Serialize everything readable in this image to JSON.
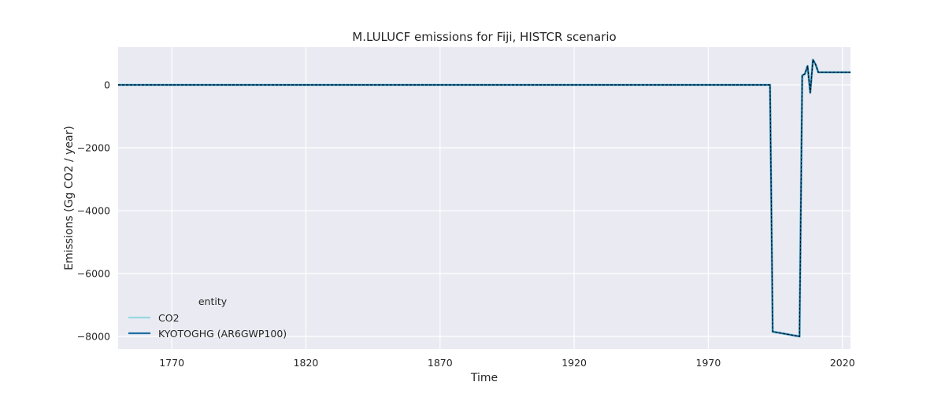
{
  "chart_data": {
    "type": "line",
    "title": "M.LULUCF emissions for Fiji, HISTCR scenario",
    "xlabel": "Time",
    "ylabel": "Emissions (Gg CO2 / year)",
    "xlim": [
      1750,
      2023
    ],
    "ylim": [
      -8400,
      1200
    ],
    "xticks": [
      1770,
      1820,
      1870,
      1920,
      1970,
      2020
    ],
    "yticks": [
      0,
      -2000,
      -4000,
      -6000,
      -8000
    ],
    "grid": true,
    "legend": {
      "title": "entity",
      "placement": "lower-left",
      "entries": [
        "CO2",
        "KYOTOGHG (AR6GWP100)"
      ]
    },
    "series": [
      {
        "name": "CO2",
        "color": "#9ad7e3",
        "style": "solid",
        "points": [
          [
            1750,
            0
          ],
          [
            1993,
            0
          ],
          [
            1994,
            -7850
          ],
          [
            2004,
            -8000
          ],
          [
            2005,
            300
          ],
          [
            2006,
            350
          ],
          [
            2007,
            600
          ],
          [
            2008,
            -250
          ],
          [
            2009,
            800
          ],
          [
            2010,
            650
          ],
          [
            2011,
            400
          ],
          [
            2023,
            400
          ]
        ]
      },
      {
        "name": "KYOTOGHG (AR6GWP100)",
        "color": "#1f6fa3",
        "style": "solid",
        "points": [
          [
            1750,
            0
          ],
          [
            1993,
            0
          ],
          [
            1994,
            -7850
          ],
          [
            2004,
            -8000
          ],
          [
            2005,
            300
          ],
          [
            2006,
            350
          ],
          [
            2007,
            600
          ],
          [
            2008,
            -250
          ],
          [
            2009,
            800
          ],
          [
            2010,
            650
          ],
          [
            2011,
            400
          ],
          [
            2023,
            400
          ]
        ]
      }
    ],
    "overlay": {
      "color": "#000000",
      "style": "dashed",
      "points": [
        [
          1750,
          0
        ],
        [
          1993,
          0
        ],
        [
          1994,
          -7850
        ],
        [
          2004,
          -8000
        ],
        [
          2005,
          300
        ],
        [
          2006,
          350
        ],
        [
          2007,
          600
        ],
        [
          2008,
          -250
        ],
        [
          2009,
          800
        ],
        [
          2010,
          650
        ],
        [
          2011,
          400
        ],
        [
          2023,
          400
        ]
      ]
    }
  }
}
